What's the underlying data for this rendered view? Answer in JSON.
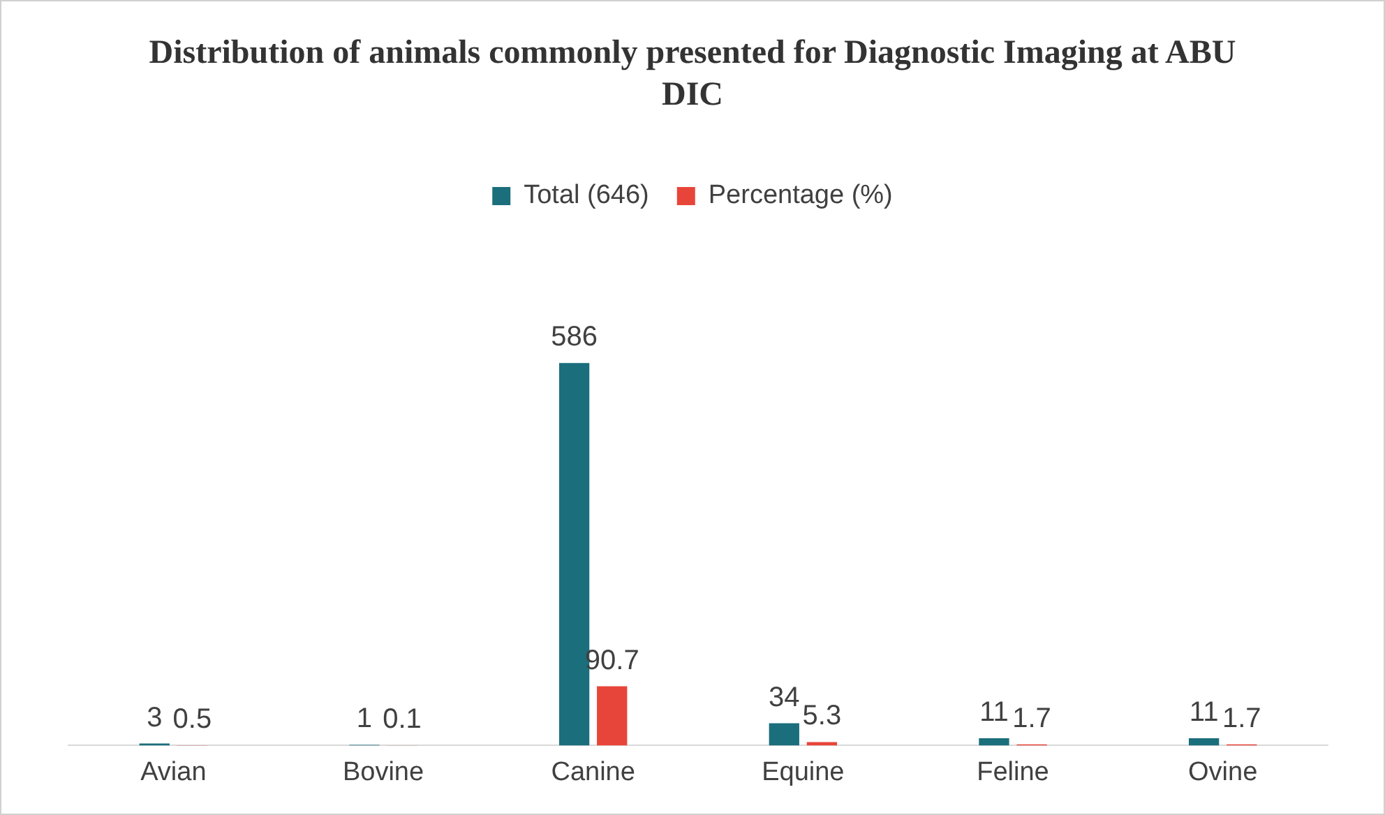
{
  "chart_data": {
    "type": "bar",
    "title": "Distribution of animals commonly presented for Diagnostic Imaging at ABU DIC",
    "categories": [
      "Avian",
      "Bovine",
      "Canine",
      "Equine",
      "Feline",
      "Ovine"
    ],
    "series": [
      {
        "name": "Total (646)",
        "color": "#1b6e7c",
        "values": [
          3,
          1,
          586,
          34,
          11,
          11
        ]
      },
      {
        "name": "Percentage (%)",
        "color": "#e8453a",
        "values": [
          0.5,
          0.1,
          90.7,
          5.3,
          1.7,
          1.7
        ]
      }
    ],
    "data_labels": true,
    "legend": "top",
    "grid": false
  }
}
